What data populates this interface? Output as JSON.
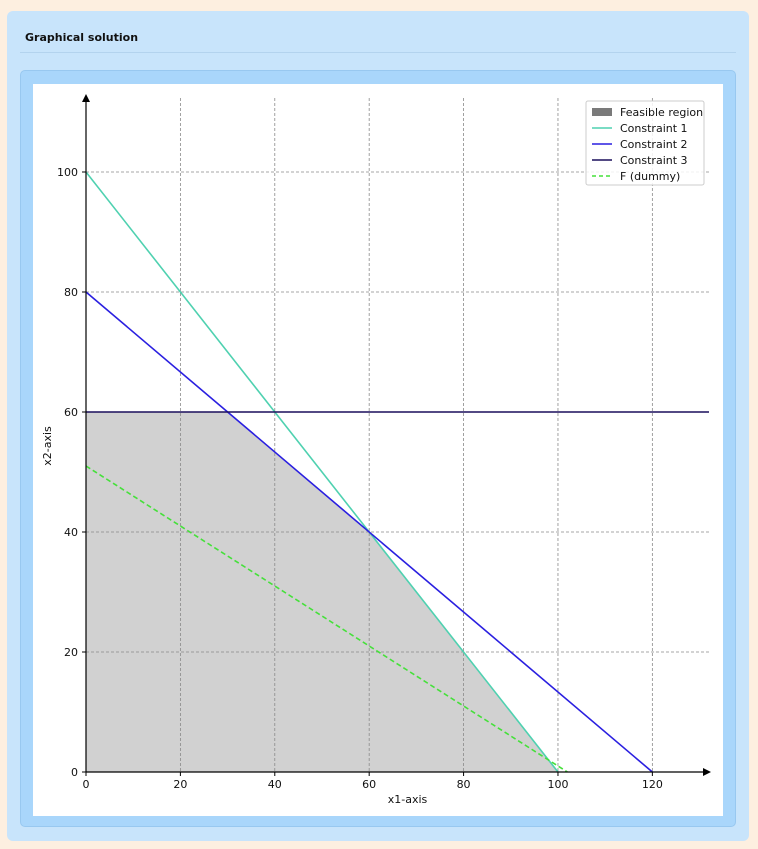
{
  "panel": {
    "title": "Graphical solution"
  },
  "chart_data": {
    "type": "line",
    "xlabel": "x1-axis",
    "ylabel": "x2-axis",
    "xlim": [
      0,
      132
    ],
    "ylim": [
      0,
      112
    ],
    "x_ticks": [
      0,
      20,
      40,
      60,
      80,
      100,
      120
    ],
    "y_ticks": [
      0,
      20,
      40,
      60,
      80,
      100
    ],
    "grid": true,
    "legend_position": "top-right",
    "feasible_region": {
      "name": "Feasible region",
      "color": "#7a7a7a",
      "polygon": [
        [
          0,
          0
        ],
        [
          0,
          60
        ],
        [
          30,
          60
        ],
        [
          60,
          40
        ],
        [
          100,
          0
        ]
      ]
    },
    "series": [
      {
        "name": "Constraint 1",
        "color": "#4fd1b0",
        "style": "solid",
        "points": [
          [
            0,
            100
          ],
          [
            100,
            0
          ]
        ]
      },
      {
        "name": "Constraint 2",
        "color": "#2a1fe0",
        "style": "solid",
        "points": [
          [
            0,
            80
          ],
          [
            120,
            0
          ]
        ]
      },
      {
        "name": "Constraint 3",
        "color": "#1a0f5c",
        "style": "solid",
        "points": [
          [
            0,
            60
          ],
          [
            132,
            60
          ]
        ]
      },
      {
        "name": "F (dummy)",
        "color": "#45e03a",
        "style": "dashed",
        "points": [
          [
            0,
            51
          ],
          [
            102,
            0
          ]
        ]
      }
    ]
  }
}
